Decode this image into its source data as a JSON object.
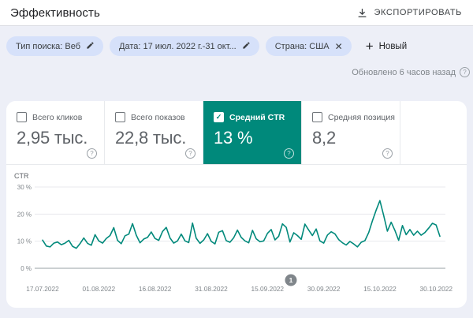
{
  "header": {
    "title": "Эффективность",
    "export_label": "ЭКСПОРТИРОВАТЬ"
  },
  "filters": {
    "chips": [
      {
        "label": "Тип поиска: Веб",
        "action": "edit"
      },
      {
        "label": "Дата: 17 июл. 2022 г.-31 окт...",
        "action": "edit"
      },
      {
        "label": "Страна: США",
        "action": "remove"
      }
    ],
    "new_label": "Новый"
  },
  "status": {
    "updated_text": "Обновлено 6 часов назад"
  },
  "metrics": {
    "cards": [
      {
        "label": "Всего кликов",
        "value": "2,95 тыс.",
        "checked": false,
        "selected": false
      },
      {
        "label": "Всего показов",
        "value": "22,8 тыс.",
        "checked": false,
        "selected": false
      },
      {
        "label": "Средний CTR",
        "value": "13 %",
        "checked": true,
        "selected": true
      },
      {
        "label": "Средняя позиция",
        "value": "8,2",
        "checked": false,
        "selected": false
      }
    ]
  },
  "pagination": {
    "page": "1"
  },
  "chart_data": {
    "type": "line",
    "title": "CTR",
    "ylabel": "CTR",
    "ylim": [
      0,
      33
    ],
    "grid": true,
    "legend_position": "none",
    "y_ticks": [
      {
        "value": 0,
        "label": "0 %"
      },
      {
        "value": 10,
        "label": "10 %"
      },
      {
        "value": 20,
        "label": "20 %"
      },
      {
        "value": 30,
        "label": "30 %"
      }
    ],
    "x_ticks": [
      {
        "day": 0,
        "label": "17.07.2022"
      },
      {
        "day": 15,
        "label": "01.08.2022"
      },
      {
        "day": 30,
        "label": "16.08.2022"
      },
      {
        "day": 45,
        "label": "31.08.2022"
      },
      {
        "day": 60,
        "label": "15.09.2022"
      },
      {
        "day": 75,
        "label": "30.09.2022"
      },
      {
        "day": 90,
        "label": "15.10.2022"
      },
      {
        "day": 105,
        "label": "30.10.2022"
      }
    ],
    "series": [
      {
        "name": "Средний CTR",
        "unit": "%",
        "color": "#00897b",
        "values": [
          10.4,
          8.2,
          7.9,
          9.3,
          9.7,
          8.7,
          9.3,
          10.3,
          8.1,
          7.4,
          9.1,
          11.2,
          9.2,
          8.5,
          12.4,
          10.1,
          9.3,
          11.0,
          12.1,
          15.0,
          10.3,
          9.1,
          12.0,
          12.6,
          16.5,
          12.2,
          9.4,
          10.8,
          11.4,
          13.4,
          11.0,
          10.3,
          13.6,
          15.1,
          11.2,
          9.3,
          10.1,
          12.6,
          10.1,
          9.5,
          16.7,
          11.1,
          9.2,
          10.5,
          12.8,
          9.9,
          9.0,
          13.3,
          13.9,
          10.2,
          9.6,
          11.3,
          14.1,
          11.4,
          10.1,
          9.4,
          14.0,
          10.9,
          9.8,
          10.1,
          12.9,
          14.3,
          10.5,
          11.8,
          16.4,
          15.1,
          9.7,
          13.1,
          12.1,
          10.7,
          16.3,
          14.1,
          12.1,
          14.5,
          10.1,
          9.3,
          12.3,
          13.5,
          12.7,
          10.6,
          9.4,
          8.6,
          9.9,
          9.0,
          7.9,
          9.6,
          10.2,
          13.2,
          17.5,
          21.5,
          25.0,
          19.5,
          13.7,
          17.0,
          14.0,
          10.3,
          15.8,
          12.4,
          14.3,
          12.2,
          13.7,
          12.2,
          13.2,
          14.8,
          16.6,
          16.0,
          11.8
        ]
      }
    ]
  },
  "colors": {
    "accent": "#00897b",
    "chip_bg": "#d6e1fa",
    "page_bg": "#edeff7",
    "grid_line": "#e8eaed",
    "axis_line": "#9aa0a6",
    "tick_text": "#80868b",
    "muted_text": "#5f6368",
    "pagination_badge": "#80868b"
  }
}
